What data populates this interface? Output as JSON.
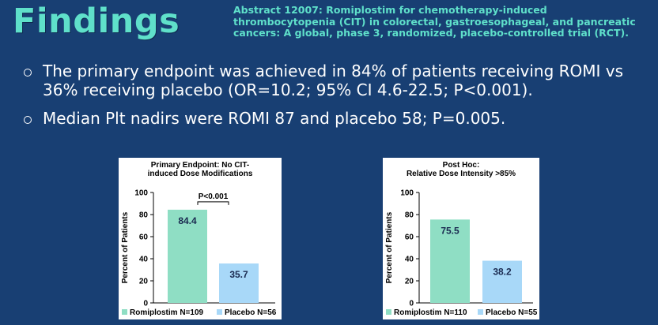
{
  "header": {
    "title": "Findings",
    "abstract": "Abstract 12007: Romiplostim for chemotherapy-induced thrombocytopenia (CIT) in colorectal, gastroesophageal, and pancreatic cancers: A global, phase 3, randomized, placebo-controlled trial (RCT)."
  },
  "bullets": [
    "The primary endpoint was achieved in 84% of patients receiving ROMI vs 36% receiving placebo (OR=10.2; 95% CI 4.6-22.5; P<0.001).",
    "Median Plt nadirs were ROMI 87 and placebo 58; P=0.005."
  ],
  "colors": {
    "background": "#183f73",
    "accent": "#5fe0ca",
    "romiplostim_bar": "#8fdec4",
    "placebo_bar": "#a8d8f8"
  },
  "chart_data": [
    {
      "type": "bar",
      "title": "Primary Endpoint: No CIT-induced Dose Modifications",
      "title_lines": [
        "Primary Endpoint: No CIT-",
        "induced Dose Modifications"
      ],
      "ylabel": "Percent of Patients",
      "ylim": [
        0,
        100
      ],
      "yticks": [
        0,
        20,
        40,
        60,
        80,
        100
      ],
      "grid": false,
      "categories": [
        "Romiplostim N=109",
        "Placebo N=56"
      ],
      "values": [
        84.4,
        35.7
      ],
      "value_labels": [
        "84.4",
        "35.7"
      ],
      "legend": [
        {
          "label": "Romiplostim N=109",
          "color": "#8fdec4"
        },
        {
          "label": "Placebo N=56",
          "color": "#a8d8f8"
        }
      ],
      "annotation": "P<0.001"
    },
    {
      "type": "bar",
      "title": "Post Hoc: Relative Dose Intensity >85%",
      "title_lines": [
        "Post Hoc:",
        "Relative Dose Intensity >85%"
      ],
      "ylabel": "Percent of Patients",
      "ylim": [
        0,
        100
      ],
      "yticks": [
        0,
        20,
        40,
        60,
        80,
        100
      ],
      "grid": false,
      "categories": [
        "Romiplostim N=110",
        "Placebo N=55"
      ],
      "values": [
        75.5,
        38.2
      ],
      "value_labels": [
        "75.5",
        "38.2"
      ],
      "legend": [
        {
          "label": "Romiplostim N=110",
          "color": "#8fdec4"
        },
        {
          "label": "Placebo N=55",
          "color": "#a8d8f8"
        }
      ],
      "annotation": ""
    }
  ]
}
